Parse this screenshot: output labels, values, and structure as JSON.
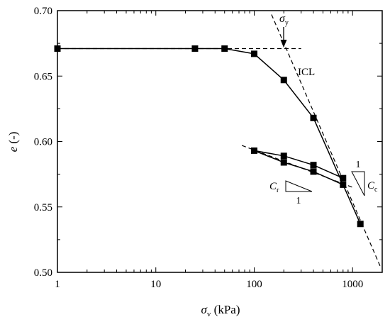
{
  "chart_data": {
    "type": "scatter",
    "x_scale": "log",
    "xlim": [
      1,
      2000
    ],
    "ylim": [
      0.5,
      0.7
    ],
    "xlabel": {
      "symbol": "σ",
      "sub": "v",
      "unit": " (kPa)"
    },
    "ylabel": {
      "symbol": "e",
      "unit": " (-)"
    },
    "x_ticks": [
      1,
      10,
      100,
      1000
    ],
    "x_tick_labels": [
      "1",
      "10",
      "100",
      "1000"
    ],
    "y_ticks": [
      0.5,
      0.55,
      0.6,
      0.65,
      0.7
    ],
    "y_tick_labels": [
      "0.50",
      "0.55",
      "0.60",
      "0.65",
      "0.70"
    ],
    "series": [
      {
        "role": "loading",
        "x": [
          1,
          25,
          50,
          100,
          200,
          400,
          800
        ],
        "y": [
          0.671,
          0.671,
          0.671,
          0.667,
          0.647,
          0.618,
          0.567
        ]
      },
      {
        "role": "unload-reload loop",
        "x": [
          800,
          400,
          200,
          100,
          200,
          400,
          800
        ],
        "y": [
          0.567,
          0.577,
          0.584,
          0.593,
          0.589,
          0.582,
          0.572
        ]
      },
      {
        "role": "virgin compression",
        "x": [
          800,
          1200
        ],
        "y": [
          0.567,
          0.537
        ]
      }
    ],
    "markers": {
      "x": [
        1,
        25,
        50,
        100,
        200,
        400,
        800,
        400,
        200,
        100,
        200,
        400,
        800,
        1200
      ],
      "y": [
        0.671,
        0.671,
        0.671,
        0.667,
        0.647,
        0.618,
        0.567,
        0.577,
        0.584,
        0.593,
        0.589,
        0.582,
        0.572,
        0.537
      ]
    },
    "dashed_lines": [
      {
        "role": "horizontal reference",
        "x": [
          1,
          300
        ],
        "y": [
          0.671,
          0.671
        ]
      },
      {
        "role": "ICL",
        "x": [
          150,
          1900
        ],
        "y": [
          0.697,
          0.505
        ]
      },
      {
        "role": "unload-reload reference",
        "x": [
          75,
          1000
        ],
        "y": [
          0.597,
          0.565
        ]
      }
    ],
    "annotations": {
      "sigma_y": {
        "symbol": "σ",
        "sub": "y",
        "x": 200
      },
      "icl": "ICL",
      "cc": {
        "symbol": "C",
        "sub": "c",
        "num": "1"
      },
      "cr": {
        "symbol": "C",
        "sub": "r",
        "num": "1"
      }
    }
  }
}
